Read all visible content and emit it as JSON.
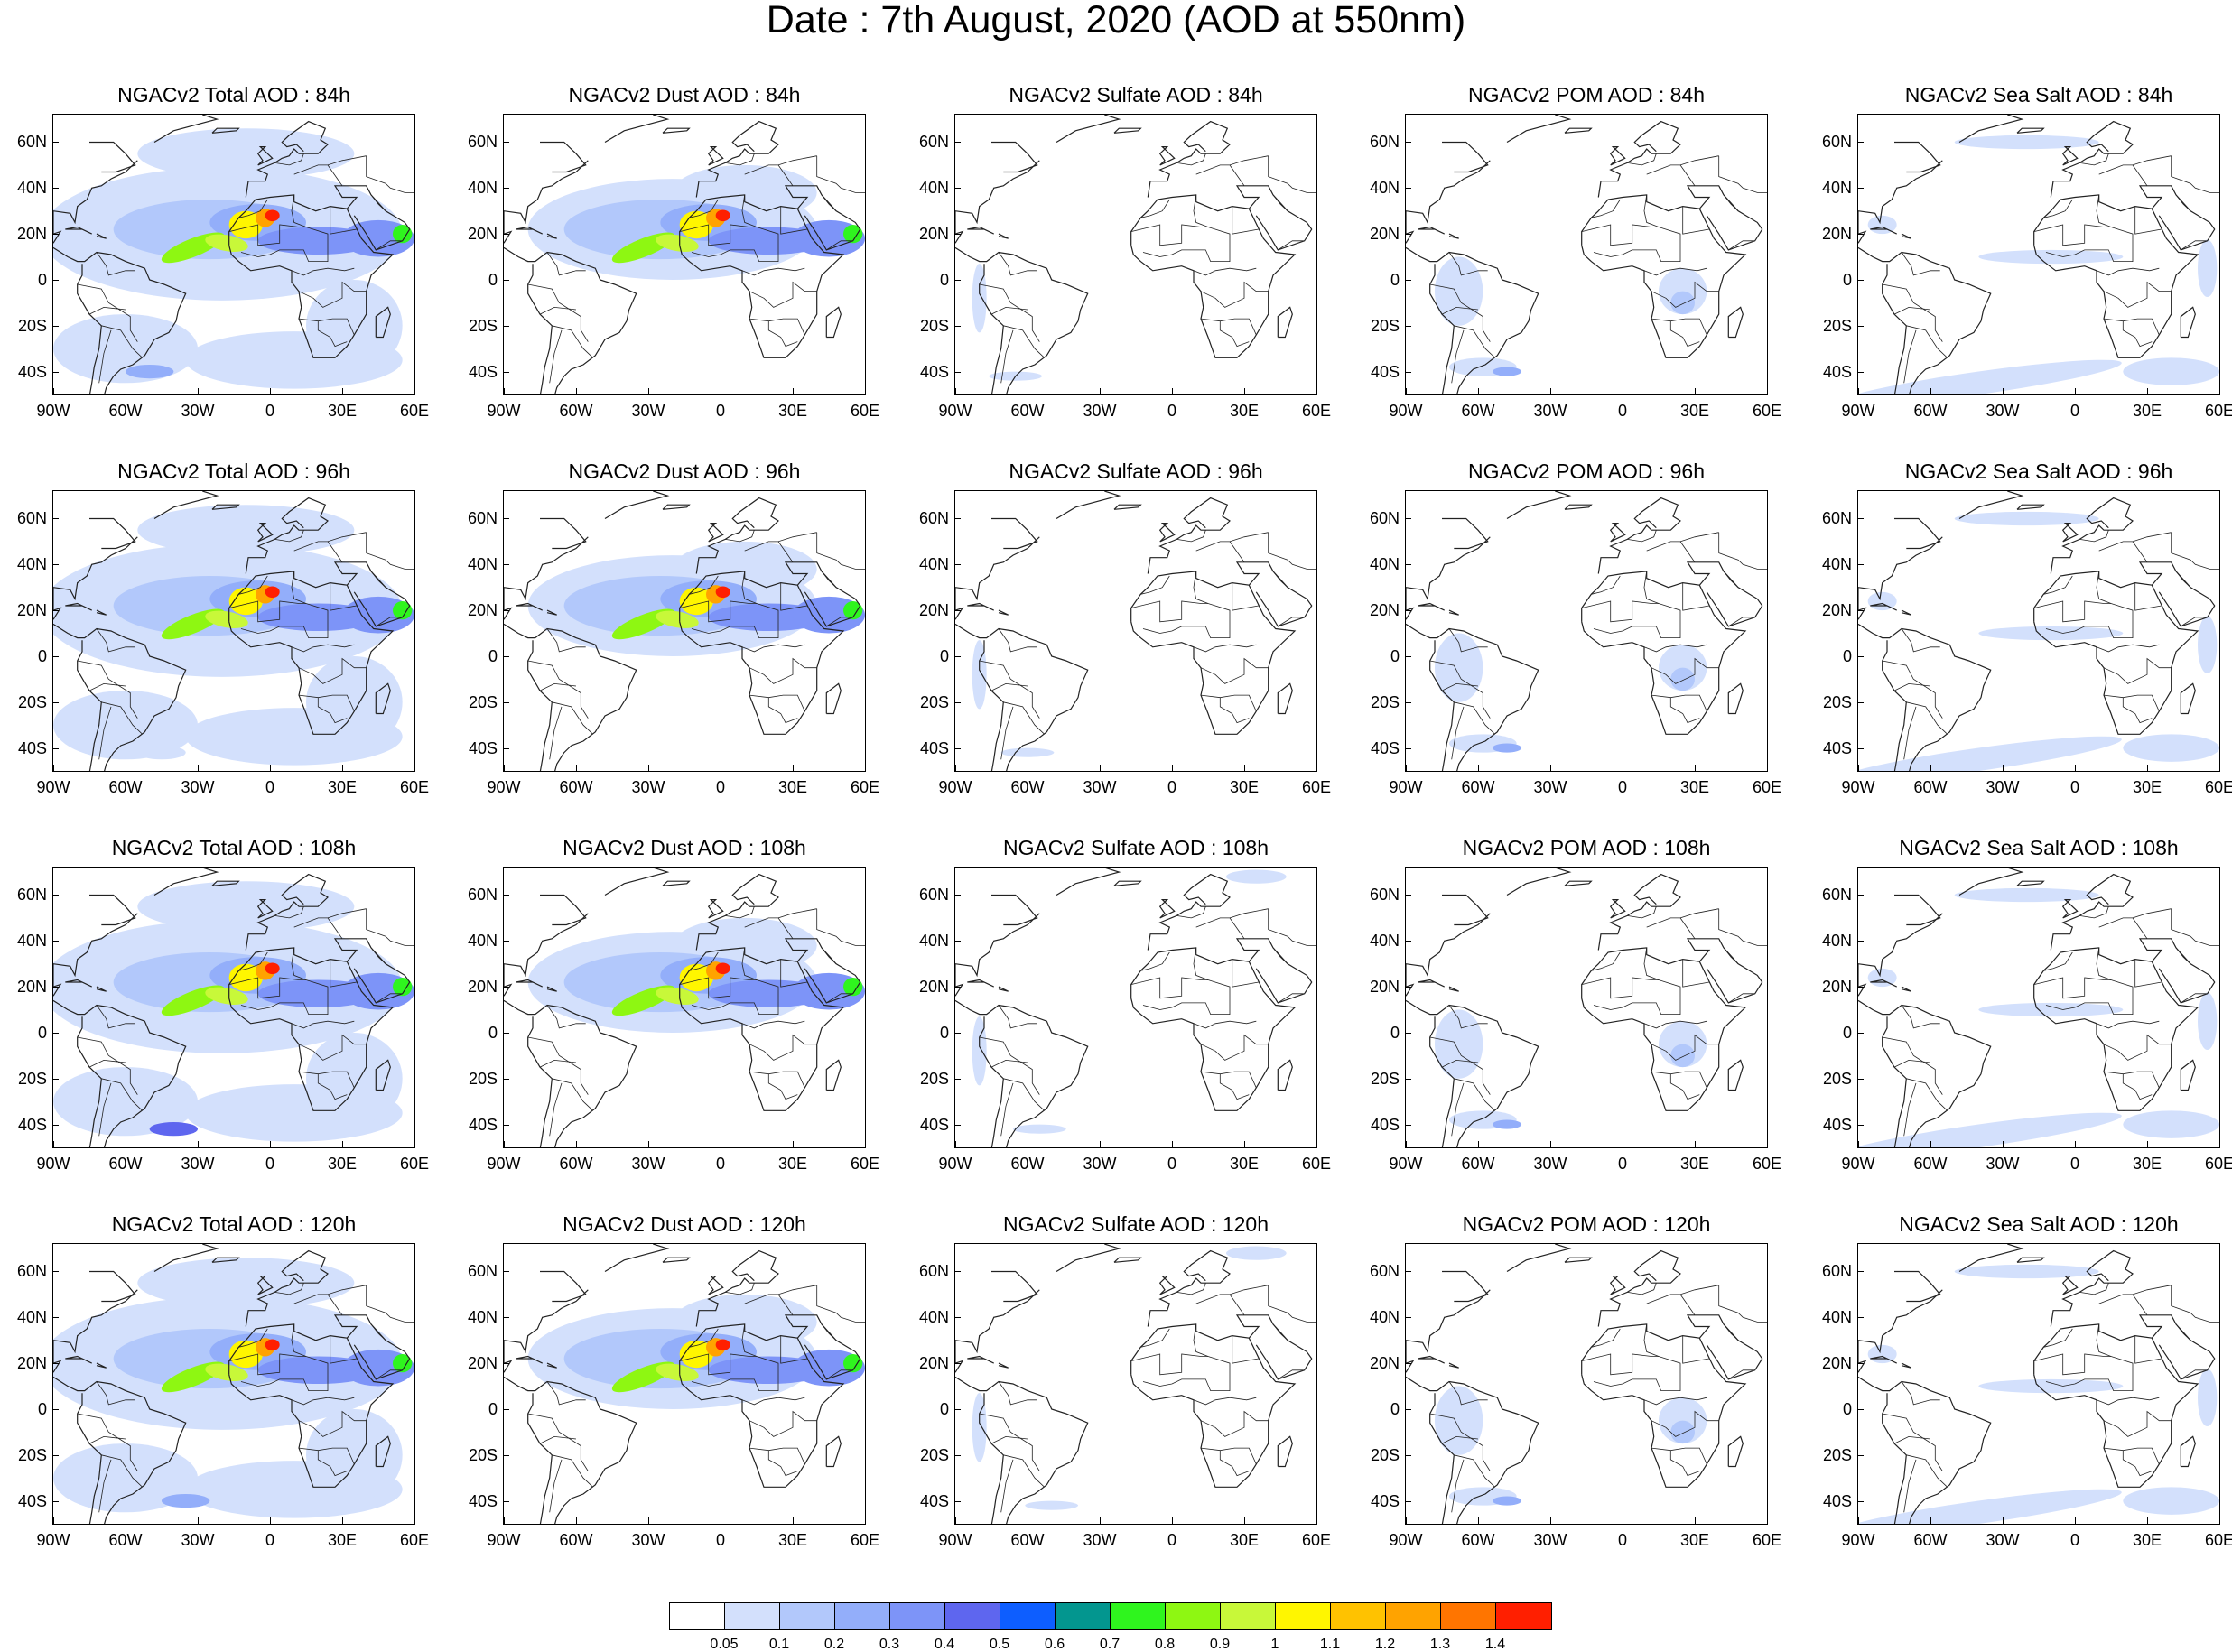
{
  "title": "Date : 7th August, 2020 (AOD at 550nm)",
  "panels": [
    {
      "title": "NGACv2 Total AOD : 84h",
      "species": "total",
      "hour": 84
    },
    {
      "title": "NGACv2 Dust AOD : 84h",
      "species": "dust",
      "hour": 84
    },
    {
      "title": "NGACv2 Sulfate AOD : 84h",
      "species": "sulfate",
      "hour": 84
    },
    {
      "title": "NGACv2 POM AOD : 84h",
      "species": "pom",
      "hour": 84
    },
    {
      "title": "NGACv2 Sea Salt AOD : 84h",
      "species": "seasalt",
      "hour": 84
    },
    {
      "title": "NGACv2 Total AOD : 96h",
      "species": "total",
      "hour": 96
    },
    {
      "title": "NGACv2 Dust AOD : 96h",
      "species": "dust",
      "hour": 96
    },
    {
      "title": "NGACv2 Sulfate AOD : 96h",
      "species": "sulfate",
      "hour": 96
    },
    {
      "title": "NGACv2 POM AOD : 96h",
      "species": "pom",
      "hour": 96
    },
    {
      "title": "NGACv2 Sea Salt AOD : 96h",
      "species": "seasalt",
      "hour": 96
    },
    {
      "title": "NGACv2 Total AOD : 108h",
      "species": "total",
      "hour": 108
    },
    {
      "title": "NGACv2 Dust AOD : 108h",
      "species": "dust",
      "hour": 108
    },
    {
      "title": "NGACv2 Sulfate AOD : 108h",
      "species": "sulfate",
      "hour": 108
    },
    {
      "title": "NGACv2 POM AOD : 108h",
      "species": "pom",
      "hour": 108
    },
    {
      "title": "NGACv2 Sea Salt AOD : 108h",
      "species": "seasalt",
      "hour": 108
    },
    {
      "title": "NGACv2 Total AOD : 120h",
      "species": "total",
      "hour": 120
    },
    {
      "title": "NGACv2 Dust AOD : 120h",
      "species": "dust",
      "hour": 120
    },
    {
      "title": "NGACv2 Sulfate AOD : 120h",
      "species": "sulfate",
      "hour": 120
    },
    {
      "title": "NGACv2 POM AOD : 120h",
      "species": "pom",
      "hour": 120
    },
    {
      "title": "NGACv2 Sea Salt  AOD : 120h",
      "species": "seasalt",
      "hour": 120
    }
  ],
  "lat_labels": [
    "60N",
    "40N",
    "20N",
    "0",
    "20S",
    "40S"
  ],
  "lat_values": [
    60,
    40,
    20,
    0,
    -20,
    -40
  ],
  "lon_labels": [
    "90W",
    "60W",
    "30W",
    "0",
    "30E",
    "60E"
  ],
  "lon_values": [
    -90,
    -60,
    -30,
    0,
    30,
    60
  ],
  "map_extent": {
    "lon": [
      -90,
      60
    ],
    "lat": [
      -50,
      72
    ]
  },
  "colorbar": {
    "labels": [
      "0.05",
      "0.1",
      "0.2",
      "0.3",
      "0.4",
      "0.5",
      "0.6",
      "0.7",
      "0.8",
      "0.9",
      "1",
      "1.1",
      "1.2",
      "1.3",
      "1.4"
    ],
    "colors": [
      "#ffffff",
      "#d3e0fc",
      "#b2c8fb",
      "#93aefa",
      "#7d94f8",
      "#5e66ef",
      "#0d5eff",
      "#03968f",
      "#2ff51e",
      "#8ef712",
      "#c8f839",
      "#fff600",
      "#ffc200",
      "#ffa300",
      "#ff7500",
      "#ff1f00"
    ]
  }
}
